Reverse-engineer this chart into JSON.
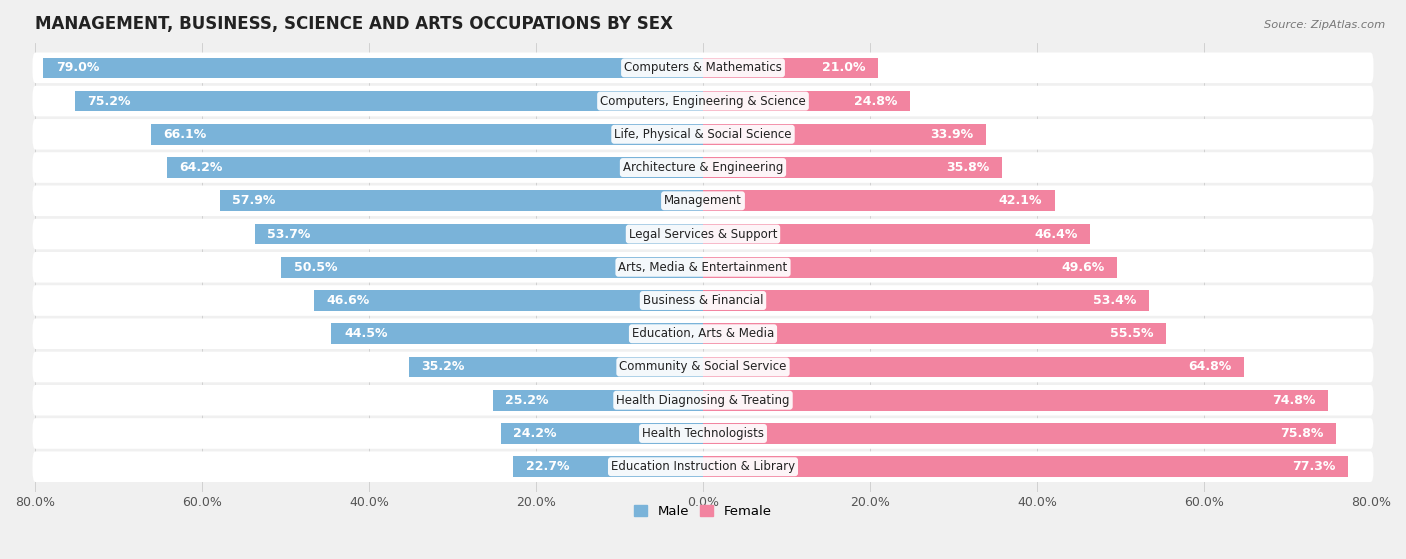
{
  "title": "MANAGEMENT, BUSINESS, SCIENCE AND ARTS OCCUPATIONS BY SEX",
  "source": "Source: ZipAtlas.com",
  "categories": [
    "Computers & Mathematics",
    "Computers, Engineering & Science",
    "Life, Physical & Social Science",
    "Architecture & Engineering",
    "Management",
    "Legal Services & Support",
    "Arts, Media & Entertainment",
    "Business & Financial",
    "Education, Arts & Media",
    "Community & Social Service",
    "Health Diagnosing & Treating",
    "Health Technologists",
    "Education Instruction & Library"
  ],
  "male_pct": [
    79.0,
    75.2,
    66.1,
    64.2,
    57.9,
    53.7,
    50.5,
    46.6,
    44.5,
    35.2,
    25.2,
    24.2,
    22.7
  ],
  "female_pct": [
    21.0,
    24.8,
    33.9,
    35.8,
    42.1,
    46.4,
    49.6,
    53.4,
    55.5,
    64.8,
    74.8,
    75.8,
    77.3
  ],
  "male_color": "#7ab3d9",
  "female_color": "#f284a0",
  "background_color": "#f0f0f0",
  "bar_background": "#ffffff",
  "axis_limit": 80.0,
  "legend_male": "Male",
  "legend_female": "Female",
  "pct_fontsize": 9,
  "title_fontsize": 12,
  "bar_height": 0.62,
  "category_fontsize": 8.5,
  "tick_fontsize": 9
}
